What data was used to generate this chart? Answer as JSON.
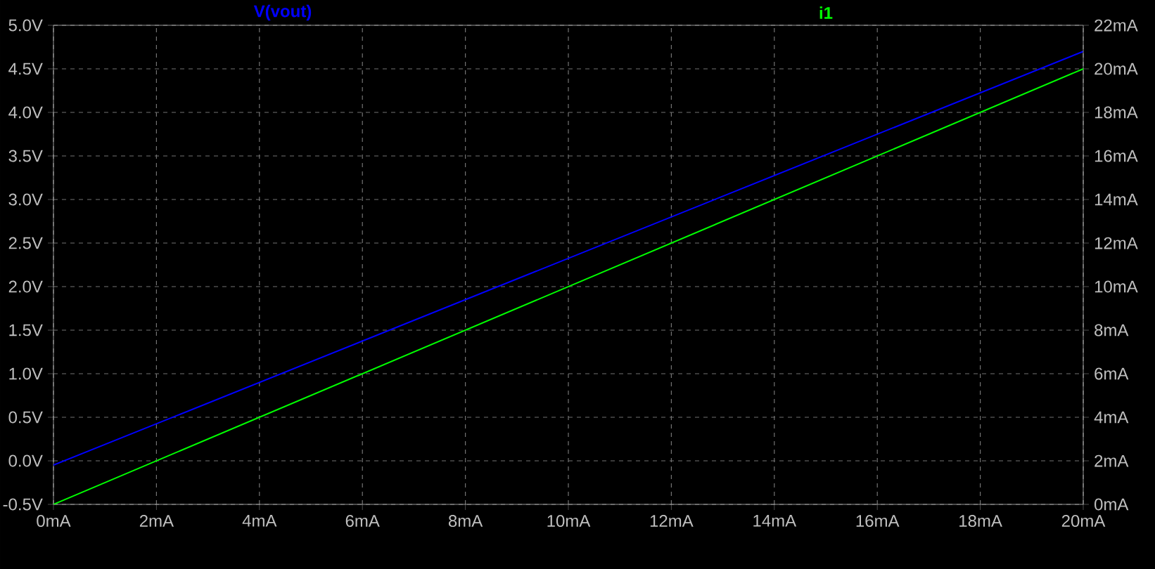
{
  "chart_data": {
    "type": "line",
    "x": [
      0,
      20
    ],
    "xlim": [
      0,
      20
    ],
    "xticks": [
      {
        "value": 0,
        "label": "0mA"
      },
      {
        "value": 2,
        "label": "2mA"
      },
      {
        "value": 4,
        "label": "4mA"
      },
      {
        "value": 6,
        "label": "6mA"
      },
      {
        "value": 8,
        "label": "8mA"
      },
      {
        "value": 10,
        "label": "10mA"
      },
      {
        "value": 12,
        "label": "12mA"
      },
      {
        "value": 14,
        "label": "14mA"
      },
      {
        "value": 16,
        "label": "16mA"
      },
      {
        "value": 18,
        "label": "18mA"
      },
      {
        "value": 20,
        "label": "20mA"
      }
    ],
    "ylim": [
      -0.5,
      5
    ],
    "yticks": [
      {
        "value": -0.5,
        "label": "-0.5V"
      },
      {
        "value": 0,
        "label": "0.0V"
      },
      {
        "value": 0.5,
        "label": "0.5V"
      },
      {
        "value": 1,
        "label": "1.0V"
      },
      {
        "value": 1.5,
        "label": "1.5V"
      },
      {
        "value": 2,
        "label": "2.0V"
      },
      {
        "value": 2.5,
        "label": "2.5V"
      },
      {
        "value": 3,
        "label": "3.0V"
      },
      {
        "value": 3.5,
        "label": "3.5V"
      },
      {
        "value": 4,
        "label": "4.0V"
      },
      {
        "value": 4.5,
        "label": "4.5V"
      },
      {
        "value": 5,
        "label": "5.0V"
      }
    ],
    "y2lim": [
      0,
      22
    ],
    "y2ticks": [
      {
        "value": 0,
        "label": "0mA"
      },
      {
        "value": 2,
        "label": "2mA"
      },
      {
        "value": 4,
        "label": "4mA"
      },
      {
        "value": 6,
        "label": "6mA"
      },
      {
        "value": 8,
        "label": "8mA"
      },
      {
        "value": 10,
        "label": "10mA"
      },
      {
        "value": 12,
        "label": "12mA"
      },
      {
        "value": 14,
        "label": "14mA"
      },
      {
        "value": 16,
        "label": "16mA"
      },
      {
        "value": 18,
        "label": "18mA"
      },
      {
        "value": 20,
        "label": "20mA"
      },
      {
        "value": 22,
        "label": "22mA"
      }
    ],
    "grid": true,
    "legend": "top",
    "series": [
      {
        "name": "V(vout)",
        "color": "#0000ff",
        "values": [
          -0.05,
          4.7
        ]
      },
      {
        "name": "i1",
        "color": "#00ff00",
        "values": [
          0,
          20
        ],
        "axis": "y2"
      }
    ]
  }
}
